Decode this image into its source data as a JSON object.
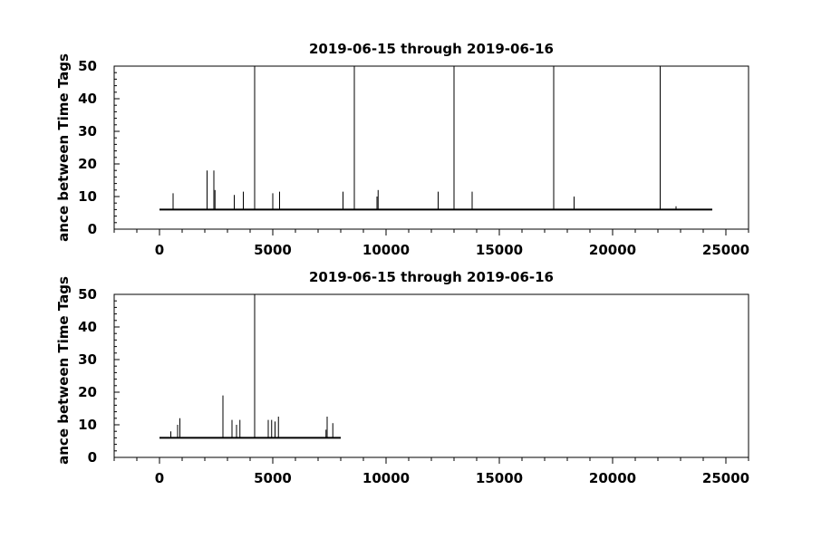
{
  "chart_data": [
    {
      "type": "line",
      "title": "2019-06-15 through 2019-06-16",
      "ylabel": "ance between Time Tags",
      "xlabel": "",
      "xlim": [
        -2000,
        26000
      ],
      "ylim": [
        0,
        50
      ],
      "x_ticks": [
        0,
        5000,
        10000,
        15000,
        20000,
        25000
      ],
      "y_ticks": [
        0,
        10,
        20,
        30,
        40,
        50
      ],
      "grid": false,
      "baseline": {
        "x": [
          0,
          24400
        ],
        "y": 6
      },
      "spikes": {
        "x": [
          600,
          2100,
          2400,
          2450,
          3300,
          3700,
          4200,
          5000,
          5300,
          8100,
          8600,
          9600,
          9650,
          12300,
          13000,
          13800,
          17400,
          18300,
          22100,
          22800
        ],
        "y": [
          11,
          18,
          18,
          12,
          10.5,
          11.5,
          50,
          11,
          11.5,
          11.5,
          50,
          10,
          12,
          11.5,
          50,
          11.5,
          50,
          10,
          50,
          7
        ]
      }
    },
    {
      "type": "line",
      "title": "2019-06-15 through 2019-06-16",
      "ylabel": "ance between Time Tags",
      "xlabel": "",
      "xlim": [
        -2000,
        26000
      ],
      "ylim": [
        0,
        50
      ],
      "x_ticks": [
        0,
        5000,
        10000,
        15000,
        20000,
        25000
      ],
      "y_ticks": [
        0,
        10,
        20,
        30,
        40,
        50
      ],
      "grid": false,
      "baseline": {
        "x": [
          0,
          8000
        ],
        "y": 6
      },
      "spikes": {
        "x": [
          500,
          800,
          900,
          2800,
          3200,
          3400,
          3550,
          4200,
          4800,
          4950,
          5100,
          5250,
          7350,
          7400,
          7650
        ],
        "y": [
          8,
          10,
          12,
          19,
          11.5,
          10,
          11.5,
          50,
          11.5,
          11.5,
          11,
          12.5,
          8.5,
          12.5,
          10.5
        ]
      }
    }
  ]
}
